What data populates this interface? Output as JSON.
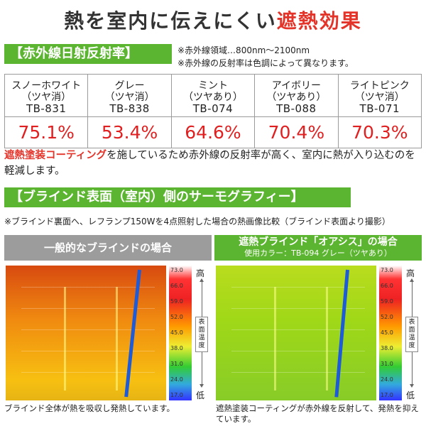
{
  "headline": {
    "part1": "熱を室内に伝えにくい",
    "part2": "遮熱効果"
  },
  "section1": {
    "label": "【赤外線日射反射率】",
    "notes": [
      "※赤外線領域…800nm～2100nm",
      "※赤外線の反射率は色調によって異なります。"
    ]
  },
  "products": [
    {
      "name": "スノーホワイト",
      "finish": "（ツヤ消）",
      "code": "TB-831",
      "rate": "75.1%"
    },
    {
      "name": "グレー",
      "finish": "（ツヤ消）",
      "code": "TB-838",
      "rate": "53.4%"
    },
    {
      "name": "ミント",
      "finish": "（ツヤあり）",
      "code": "TB-074",
      "rate": "64.6%"
    },
    {
      "name": "アイボリー",
      "finish": "（ツヤあり）",
      "code": "TB-088",
      "rate": "70.4%"
    },
    {
      "name": "ライトピンク",
      "finish": "（ツヤ消）",
      "code": "TB-071",
      "rate": "70.3%"
    }
  ],
  "description": {
    "highlight": "遮熱塗装コーティング",
    "text": "を施しているため赤外線の反射率が高く、室内に熱が入り込むのを軽減します。"
  },
  "section2": {
    "label": "【ブラインド表面（室内）側のサーモグラフィー】",
    "note": "※ブラインド裏面へ、レフランプ150Wを4点照射した場合の熱画像比較（ブラインド表面より撮影）"
  },
  "panels": {
    "left": {
      "title": "一般的なブラインドの場合",
      "caption": "ブラインド全体が熱を吸収し発熱しています。"
    },
    "right": {
      "title": "遮熱ブラインド「オアシス」の場合",
      "subtitle": "使用カラー：TB-094 グレー（ツヤあり）",
      "caption": "遮熱塗装コーティングが赤外線を反射して、発熱を抑えています。"
    }
  },
  "scale": {
    "ticks": [
      "73.0",
      "66.0",
      "59.0",
      "52.0",
      "45.0",
      "38.0",
      "31.0",
      "24.0",
      "17.0"
    ],
    "high": "高",
    "low": "低",
    "label": "表面温度"
  },
  "colors": {
    "accent_red": "#e4342a",
    "label_green": "#5cb531",
    "label_gray": "#9c9c9c"
  }
}
